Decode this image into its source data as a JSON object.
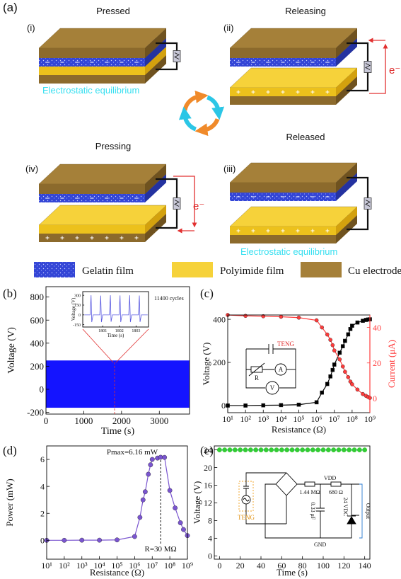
{
  "figure_a": {
    "label": "(a)",
    "panels": [
      {
        "numeral": "(i)",
        "title": "Pressed",
        "note": "Electrostatic equilibrium"
      },
      {
        "numeral": "(ii)",
        "title": "Releasing",
        "electron": "e⁻"
      },
      {
        "numeral": "(iv)",
        "title": "Pressing",
        "electron": "e⁻"
      },
      {
        "numeral": "(iii)",
        "title": "Released",
        "note": "Electrostatic equilibrium"
      }
    ],
    "legend": [
      "Gelatin film",
      "Polyimide film",
      "Cu electrode"
    ]
  },
  "chart_data": [
    {
      "type": "band",
      "panel": "(b)",
      "xlabel": "Time (s)",
      "ylabel": "Voltage (V)",
      "xlim": [
        0,
        3800
      ],
      "ylim": [
        -215,
        890
      ],
      "xticks": [
        0,
        1000,
        2000,
        3000
      ],
      "yticks": [
        -200,
        0,
        200,
        400,
        600,
        800
      ],
      "x": [
        0,
        3800
      ],
      "series": [
        {
          "color": "#1414ff",
          "upper": [
            250,
            250
          ],
          "lower": [
            -160,
            -160
          ]
        }
      ],
      "annotation": "11400 cycles",
      "inset": {
        "type": "line",
        "xlabel": "Time (s)",
        "ylabel": "Voltage (V)",
        "xlim": [
          1799.8,
          1803.75
        ],
        "ylim": [
          -186,
          356
        ],
        "xticks": [
          1801,
          1802,
          1803
        ],
        "yticks": [
          -150,
          0,
          150,
          300
        ],
        "x": [
          1799.9,
          1800.24,
          1800.3,
          1800.34,
          1800.42,
          1800.82,
          1800.88,
          1800.92,
          1801.0,
          1801.4,
          1801.46,
          1801.5,
          1801.58,
          1801.98,
          1802.04,
          1802.08,
          1802.16,
          1802.56,
          1802.62,
          1802.66,
          1802.74,
          1803.14,
          1803.2,
          1803.24,
          1803.32,
          1803.7
        ],
        "series": [
          {
            "color": "#5a5ae0",
            "values": [
              0,
              0,
              300,
              -110,
              0,
              0,
              295,
              -110,
              0,
              0,
              300,
              -105,
              0,
              0,
              298,
              -110,
              0,
              0,
              300,
              -110,
              0,
              0,
              296,
              -108,
              0,
              0
            ]
          }
        ]
      }
    },
    {
      "type": "line",
      "panel": "(c)",
      "xlabel": "Resistance (Ω)",
      "ylabel": "Voltage (V)",
      "y2label": "Current (μA)",
      "xscale": "log",
      "xlim": [
        10,
        1000000000
      ],
      "ylim": [
        -33,
        420
      ],
      "y2lim": [
        -8,
        47
      ],
      "xticks": [
        {
          "value": 10,
          "label": "10¹"
        },
        {
          "value": 100,
          "label": "10²"
        },
        {
          "value": 1000,
          "label": "10³"
        },
        {
          "value": 10000,
          "label": "10⁴"
        },
        {
          "value": 100000,
          "label": "10⁵"
        },
        {
          "value": 1000000,
          "label": "10⁶"
        },
        {
          "value": 10000000,
          "label": "10⁷"
        },
        {
          "value": 100000000,
          "label": "10⁸"
        },
        {
          "value": 1000000000,
          "label": "10⁹"
        }
      ],
      "yticks": [
        0,
        200,
        400
      ],
      "y2ticks": [
        0,
        20,
        40
      ],
      "x": [
        10,
        100,
        1000,
        10000,
        100000,
        1000000,
        2000000,
        4000000,
        6000000,
        8000000,
        10000000,
        20000000,
        30000000,
        40000000,
        60000000,
        80000000,
        100000000,
        200000000,
        400000000,
        600000000,
        800000000,
        1000000000
      ],
      "series": [
        {
          "color": "#000000",
          "marker": "square",
          "values": [
            0,
            0,
            1,
            2,
            4,
            15,
            60,
            100,
            135,
            165,
            190,
            245,
            275,
            300,
            330,
            355,
            370,
            385,
            393,
            397,
            399,
            400
          ]
        },
        {
          "color": "#ff3b3b",
          "marker": "circle",
          "axis": "y2",
          "values": [
            47,
            46.5,
            46.3,
            46,
            45.5,
            44,
            40,
            36,
            33,
            30,
            27,
            22,
            18,
            15,
            12,
            9.5,
            8,
            5,
            2.5,
            1.5,
            0.8,
            0.3
          ]
        }
      ],
      "circuit": {
        "source": "TENG",
        "resistor": "R",
        "ammeter": "A",
        "voltmeter": "V"
      }
    },
    {
      "type": "line",
      "panel": "(d)",
      "xlabel": "Resistance (Ω)",
      "ylabel": "Power (mW)",
      "xscale": "log",
      "xlim": [
        10,
        1000000000
      ],
      "ylim": [
        -1.4,
        7
      ],
      "xticks": [
        {
          "value": 10,
          "label": "10¹"
        },
        {
          "value": 100,
          "label": "10²"
        },
        {
          "value": 1000,
          "label": "10³"
        },
        {
          "value": 10000,
          "label": "10⁴"
        },
        {
          "value": 100000,
          "label": "10⁵"
        },
        {
          "value": 1000000,
          "label": "10⁶"
        },
        {
          "value": 10000000,
          "label": "10⁷"
        },
        {
          "value": 100000000,
          "label": "10⁸"
        },
        {
          "value": 1000000000,
          "label": "10⁹"
        }
      ],
      "yticks": [
        0,
        2,
        4,
        6
      ],
      "x": [
        10,
        100,
        1000,
        10000,
        100000,
        1000000,
        2000000,
        3000000,
        4000000,
        6000000,
        8000000,
        10000000,
        20000000,
        30000000,
        50000000,
        100000000,
        200000000,
        400000000,
        600000000,
        1000000000
      ],
      "series": [
        {
          "color": "#7a55d0",
          "marker": "circle",
          "values": [
            0,
            0,
            0.01,
            0.01,
            0.03,
            0.28,
            1.7,
            3.0,
            3.6,
            4.9,
            5.6,
            6.0,
            6.1,
            6.16,
            6.15,
            3.7,
            2.4,
            1.3,
            0.8,
            0.35
          ]
        }
      ],
      "annotations": [
        "Pmax=6.16 mW",
        "R=30 MΩ"
      ]
    },
    {
      "type": "line",
      "panel": "(e)",
      "xlabel": "Time (s)",
      "ylabel": "Voltage (V)",
      "xlim": [
        -5,
        145
      ],
      "ylim": [
        -0.75,
        24.9
      ],
      "xticks": [
        0,
        20,
        40,
        60,
        80,
        100,
        120,
        140
      ],
      "yticks": [
        0,
        4,
        8,
        12,
        16,
        20,
        24
      ],
      "x": [
        0,
        5,
        10,
        15,
        20,
        25,
        30,
        35,
        40,
        45,
        50,
        55,
        60,
        65,
        70,
        75,
        80,
        85,
        90,
        95,
        100,
        105,
        110,
        115,
        120,
        125,
        130,
        135,
        140
      ],
      "series": [
        {
          "color": "#3a46ff",
          "marker": "circle",
          "marker_color": "#33cc33",
          "values": [
            24,
            24,
            24,
            24,
            24,
            24,
            24,
            24,
            24,
            24,
            24,
            24,
            24,
            24,
            24,
            24,
            24,
            24,
            24,
            24,
            24,
            24,
            24,
            24,
            24,
            24,
            24,
            24,
            24
          ]
        }
      ],
      "circuit": {
        "source": "TENG",
        "r1": "1.44 MΩ",
        "vdd": "VDD",
        "r2": "680 Ω",
        "cap": "0.33 μF",
        "gnd": "GND",
        "zener": "24 VDC",
        "output": "Output"
      }
    }
  ]
}
